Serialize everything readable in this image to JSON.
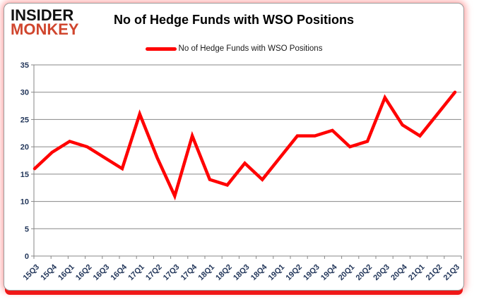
{
  "logo": {
    "line1": "INSIDER",
    "line2": "MONKEY",
    "monkey_color": "#d0462e"
  },
  "header": {
    "title": "No of Hedge Funds with WSO Positions"
  },
  "legend": {
    "label": "No of Hedge Funds with WSO Positions",
    "swatch_color": "#ff0000"
  },
  "chart_data": {
    "type": "line",
    "title": "No of Hedge Funds with WSO Positions",
    "categories": [
      "15Q3",
      "15Q4",
      "16Q1",
      "16Q2",
      "16Q3",
      "16Q4",
      "17Q1",
      "17Q2",
      "17Q3",
      "17Q4",
      "18Q1",
      "18Q2",
      "18Q3",
      "18Q4",
      "19Q1",
      "19Q2",
      "19Q3",
      "19Q4",
      "20Q1",
      "20Q2",
      "20Q3",
      "20Q4",
      "21Q1",
      "21Q2",
      "21Q3"
    ],
    "series": [
      {
        "name": "No of Hedge Funds with WSO Positions",
        "color": "#ff0000",
        "values": [
          16,
          19,
          21,
          20,
          18,
          16,
          26,
          18,
          11,
          22,
          14,
          13,
          17,
          14,
          18,
          22,
          22,
          23,
          20,
          21,
          29,
          24,
          22,
          26,
          30
        ]
      }
    ],
    "xlabel": "",
    "ylabel": "",
    "ylim": [
      0,
      35
    ],
    "ytick_step": 5,
    "grid": true,
    "legend_position": "top-center",
    "gridline_color": "#878787",
    "axis_color": "#878787",
    "tick_label_color": "#22365a"
  }
}
